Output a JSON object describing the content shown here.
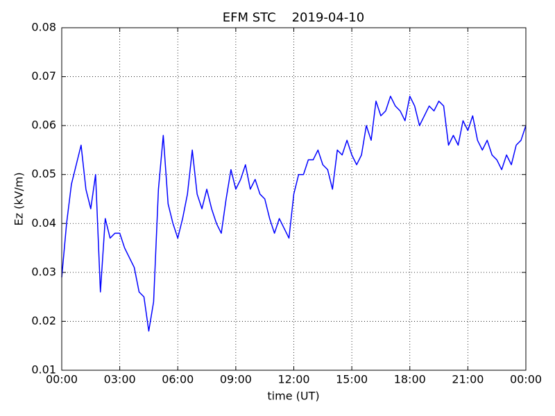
{
  "chart_data": {
    "type": "line",
    "title": "EFM STC    2019-04-10",
    "xlabel": "time (UT)",
    "ylabel": "Ez (kV/m)",
    "color": "#0000ff",
    "grid": true,
    "xlim": [
      0,
      24
    ],
    "xticks": [
      {
        "value": 0,
        "label": "00:00"
      },
      {
        "value": 3,
        "label": "03:00"
      },
      {
        "value": 6,
        "label": "06:00"
      },
      {
        "value": 9,
        "label": "09:00"
      },
      {
        "value": 12,
        "label": "12:00"
      },
      {
        "value": 15,
        "label": "15:00"
      },
      {
        "value": 18,
        "label": "18:00"
      },
      {
        "value": 21,
        "label": "21:00"
      },
      {
        "value": 24,
        "label": "00:00"
      }
    ],
    "ylim": [
      0.01,
      0.08
    ],
    "yticks": [
      0.01,
      0.02,
      0.03,
      0.04,
      0.05,
      0.06,
      0.07,
      0.08
    ],
    "x": [
      0,
      0.25,
      0.5,
      0.75,
      1,
      1.25,
      1.5,
      1.75,
      2,
      2.25,
      2.5,
      2.75,
      3,
      3.25,
      3.5,
      3.75,
      4,
      4.25,
      4.5,
      4.75,
      5,
      5.25,
      5.5,
      5.75,
      6,
      6.25,
      6.5,
      6.75,
      7,
      7.25,
      7.5,
      7.75,
      8,
      8.25,
      8.5,
      8.75,
      9,
      9.25,
      9.5,
      9.75,
      10,
      10.25,
      10.5,
      10.75,
      11,
      11.25,
      11.5,
      11.75,
      12,
      12.25,
      12.5,
      12.75,
      13,
      13.25,
      13.5,
      13.75,
      14,
      14.25,
      14.5,
      14.75,
      15,
      15.25,
      15.5,
      15.75,
      16,
      16.25,
      16.5,
      16.75,
      17,
      17.25,
      17.5,
      17.75,
      18,
      18.25,
      18.5,
      18.75,
      19,
      19.25,
      19.5,
      19.75,
      20,
      20.25,
      20.5,
      20.75,
      21,
      21.25,
      21.5,
      21.75,
      22,
      22.25,
      22.5,
      22.75,
      23,
      23.25,
      23.5,
      23.75,
      24
    ],
    "values": [
      0.029,
      0.04,
      0.048,
      0.052,
      0.056,
      0.047,
      0.043,
      0.05,
      0.026,
      0.041,
      0.037,
      0.038,
      0.038,
      0.035,
      0.033,
      0.031,
      0.026,
      0.025,
      0.018,
      0.024,
      0.047,
      0.058,
      0.044,
      0.04,
      0.037,
      0.041,
      0.046,
      0.055,
      0.046,
      0.043,
      0.047,
      0.043,
      0.04,
      0.038,
      0.045,
      0.051,
      0.047,
      0.049,
      0.052,
      0.047,
      0.049,
      0.046,
      0.045,
      0.041,
      0.038,
      0.041,
      0.039,
      0.037,
      0.046,
      0.05,
      0.05,
      0.053,
      0.053,
      0.055,
      0.052,
      0.051,
      0.047,
      0.055,
      0.054,
      0.057,
      0.054,
      0.052,
      0.054,
      0.06,
      0.057,
      0.065,
      0.062,
      0.063,
      0.066,
      0.064,
      0.063,
      0.061,
      0.066,
      0.064,
      0.06,
      0.062,
      0.064,
      0.063,
      0.065,
      0.064,
      0.056,
      0.058,
      0.056,
      0.061,
      0.059,
      0.062,
      0.057,
      0.055,
      0.057,
      0.054,
      0.053,
      0.051,
      0.054,
      0.052,
      0.056,
      0.057,
      0.06
    ]
  }
}
